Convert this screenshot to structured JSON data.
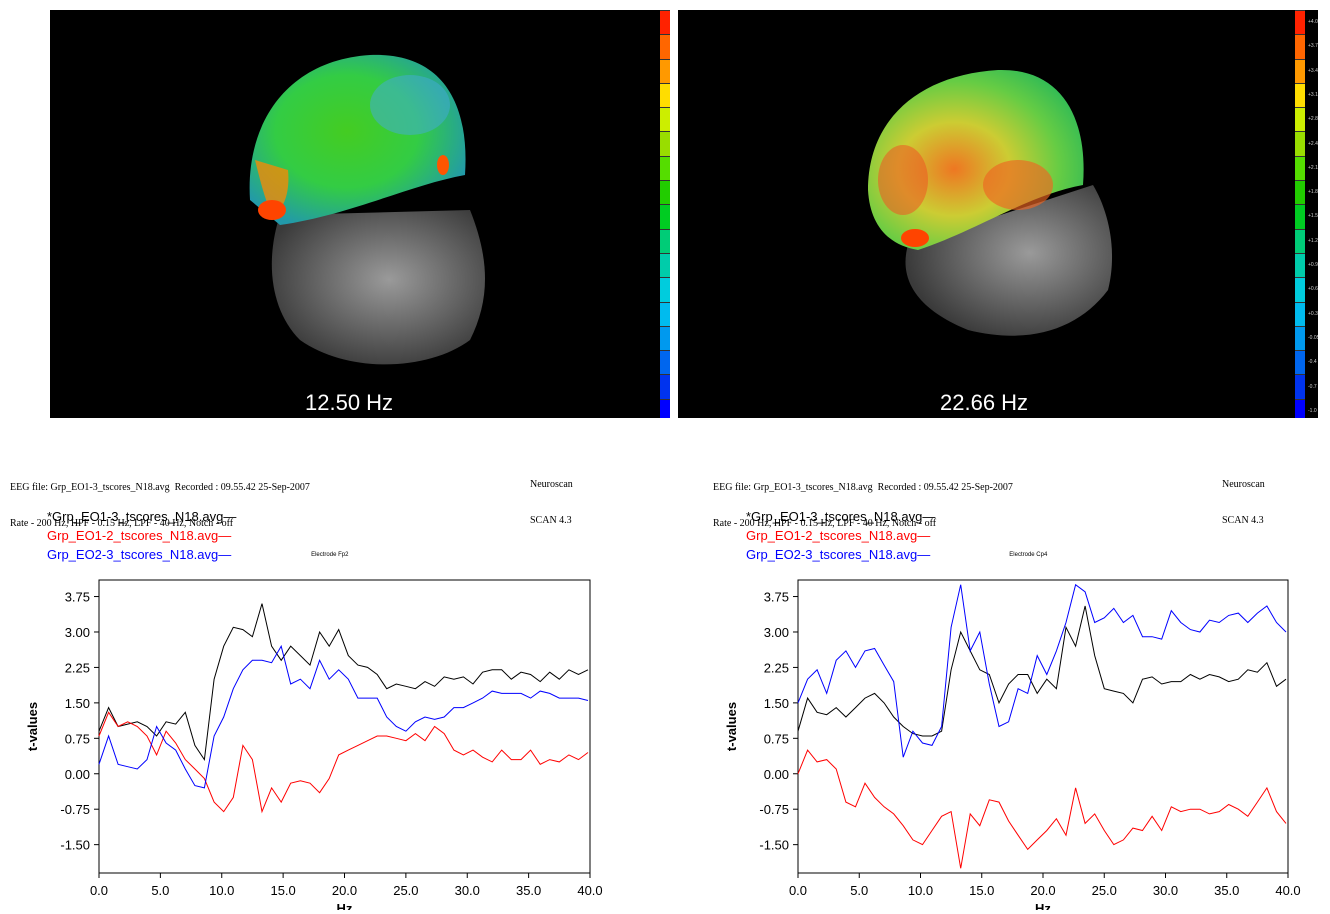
{
  "maps": [
    {
      "frequency_label": "12.50 Hz"
    },
    {
      "frequency_label": "22.66 Hz"
    }
  ],
  "colorbar": {
    "ticks": [
      "+4.0",
      "+3.7",
      "+3.4",
      "+3.1",
      "+2.8",
      "+2.4",
      "+2.1",
      "+1.8",
      "+1.5",
      "+1.2",
      "+0.9",
      "+0.6",
      "+0.3",
      "-0.05",
      "-0.4",
      "-0.7",
      "-1.0"
    ],
    "colors": [
      "#ff2200",
      "#ff6600",
      "#ff9900",
      "#ffdd00",
      "#ccee00",
      "#99dd00",
      "#55dd00",
      "#22cc00",
      "#00cc22",
      "#00cc77",
      "#00ccaa",
      "#00ccdd",
      "#00bbee",
      "#0099ee",
      "#0066ee",
      "#0033ee",
      "#0000ff"
    ]
  },
  "header_left": {
    "line1": "EEG file: Grp_EO1-3_tscores_N18.avg  Recorded : 09.55.42 25-Sep-2007",
    "line2": "Rate - 200 Hz, HPF - 0.15 Hz, LPF - 40 Hz, Notch - off",
    "software": "Neuroscan",
    "version": "SCAN 4.3"
  },
  "header_right": {
    "line1": "EEG file: Grp_EO1-3_tscores_N18.avg  Recorded : 09.55.42 25-Sep-2007",
    "line2": "Rate - 200 Hz, HPF - 0.15 Hz, LPF - 40 Hz, Notch - off",
    "software": "Neuroscan",
    "version": "SCAN 4.3"
  },
  "chart_data": [
    {
      "type": "line",
      "title": "Electrode Fp2",
      "xlabel": "Hz",
      "ylabel": "t-values",
      "xlim": [
        0,
        40
      ],
      "ylim": [
        -2.1,
        4.1
      ],
      "xticks": [
        "0.0",
        "5.0",
        "10.0",
        "15.0",
        "20.0",
        "25.0",
        "30.0",
        "35.0",
        "40.0"
      ],
      "yticks": [
        "3.75",
        "3.00",
        "2.25",
        "1.50",
        "0.75",
        "0.00",
        "-0.75",
        "-1.50"
      ],
      "x": [
        0.0,
        0.78,
        1.56,
        2.34,
        3.12,
        3.91,
        4.69,
        5.47,
        6.25,
        7.03,
        7.81,
        8.59,
        9.38,
        10.16,
        10.94,
        11.72,
        12.5,
        13.28,
        14.06,
        14.84,
        15.62,
        16.41,
        17.19,
        17.97,
        18.75,
        19.53,
        20.31,
        21.09,
        21.88,
        22.66,
        23.44,
        24.22,
        25.0,
        25.78,
        26.56,
        27.34,
        28.12,
        28.91,
        29.69,
        30.47,
        31.25,
        32.03,
        32.81,
        33.59,
        34.38,
        35.16,
        35.94,
        36.72,
        37.5,
        38.28,
        39.06,
        39.84
      ],
      "series": [
        {
          "name": "*Grp_EO1-3_tscores_N18.avg",
          "color": "#000000",
          "values": [
            0.9,
            1.4,
            1.0,
            1.05,
            1.1,
            1.0,
            0.8,
            1.1,
            1.05,
            1.3,
            0.6,
            0.3,
            2.0,
            2.7,
            3.1,
            3.05,
            2.9,
            3.6,
            2.7,
            2.4,
            2.7,
            2.5,
            2.3,
            3.0,
            2.7,
            3.05,
            2.5,
            2.3,
            2.25,
            2.1,
            1.8,
            1.9,
            1.85,
            1.8,
            1.95,
            1.85,
            2.05,
            2.0,
            2.05,
            1.9,
            2.15,
            2.2,
            2.2,
            2.0,
            2.15,
            2.1,
            1.95,
            2.15,
            2.0,
            2.2,
            2.1,
            2.2
          ]
        },
        {
          "name": "Grp_EO1-2_tscores_N18.avg",
          "color": "#ff0000",
          "values": [
            0.8,
            1.3,
            1.0,
            1.1,
            1.0,
            0.8,
            0.4,
            0.9,
            0.65,
            0.3,
            0.1,
            -0.1,
            -0.6,
            -0.8,
            -0.5,
            0.6,
            0.3,
            -0.8,
            -0.3,
            -0.6,
            -0.2,
            -0.15,
            -0.2,
            -0.4,
            -0.1,
            0.4,
            0.5,
            0.6,
            0.7,
            0.8,
            0.8,
            0.75,
            0.7,
            0.85,
            0.7,
            1.0,
            0.85,
            0.5,
            0.4,
            0.5,
            0.35,
            0.25,
            0.5,
            0.3,
            0.3,
            0.5,
            0.2,
            0.3,
            0.25,
            0.4,
            0.3,
            0.45
          ]
        },
        {
          "name": "Grp_EO2-3_tscores_N18.avg",
          "color": "#0000ff",
          "values": [
            0.2,
            0.8,
            0.2,
            0.15,
            0.1,
            0.3,
            1.0,
            0.65,
            0.5,
            0.1,
            -0.25,
            -0.3,
            0.8,
            1.2,
            1.8,
            2.2,
            2.4,
            2.4,
            2.35,
            2.7,
            1.9,
            2.0,
            1.8,
            2.4,
            2.0,
            2.2,
            2.0,
            1.6,
            1.6,
            1.6,
            1.2,
            1.0,
            0.9,
            1.1,
            1.2,
            1.15,
            1.2,
            1.4,
            1.4,
            1.5,
            1.6,
            1.75,
            1.7,
            1.7,
            1.7,
            1.6,
            1.75,
            1.7,
            1.6,
            1.6,
            1.6,
            1.55
          ]
        }
      ]
    },
    {
      "type": "line",
      "title": "Electrode Cp4",
      "xlabel": "Hz",
      "ylabel": "t-values",
      "xlim": [
        0,
        40
      ],
      "ylim": [
        -2.1,
        4.1
      ],
      "xticks": [
        "0.0",
        "5.0",
        "10.0",
        "15.0",
        "20.0",
        "25.0",
        "30.0",
        "35.0",
        "40.0"
      ],
      "yticks": [
        "3.75",
        "3.00",
        "2.25",
        "1.50",
        "0.75",
        "0.00",
        "-0.75",
        "-1.50"
      ],
      "x": [
        0.0,
        0.78,
        1.56,
        2.34,
        3.12,
        3.91,
        4.69,
        5.47,
        6.25,
        7.03,
        7.81,
        8.59,
        9.38,
        10.16,
        10.94,
        11.72,
        12.5,
        13.28,
        14.06,
        14.84,
        15.62,
        16.41,
        17.19,
        17.97,
        18.75,
        19.53,
        20.31,
        21.09,
        21.88,
        22.66,
        23.44,
        24.22,
        25.0,
        25.78,
        26.56,
        27.34,
        28.12,
        28.91,
        29.69,
        30.47,
        31.25,
        32.03,
        32.81,
        33.59,
        34.38,
        35.16,
        35.94,
        36.72,
        37.5,
        38.28,
        39.06,
        39.84
      ],
      "series": [
        {
          "name": "*Grp_EO1-3_tscores_N18.avg",
          "color": "#000000",
          "values": [
            0.9,
            1.6,
            1.3,
            1.25,
            1.4,
            1.2,
            1.4,
            1.6,
            1.7,
            1.5,
            1.2,
            1.0,
            0.85,
            0.8,
            0.8,
            0.9,
            2.2,
            3.0,
            2.6,
            2.2,
            2.1,
            1.5,
            1.9,
            2.1,
            2.1,
            1.7,
            2.0,
            1.8,
            3.1,
            2.7,
            3.55,
            2.5,
            1.8,
            1.75,
            1.7,
            1.5,
            2.0,
            2.05,
            1.9,
            1.95,
            1.95,
            2.1,
            2.0,
            2.1,
            2.05,
            1.95,
            2.0,
            2.2,
            2.15,
            2.35,
            1.85,
            2.0
          ]
        },
        {
          "name": "Grp_EO1-2_tscores_N18.avg",
          "color": "#ff0000",
          "values": [
            0.0,
            0.5,
            0.25,
            0.3,
            0.1,
            -0.6,
            -0.7,
            -0.2,
            -0.5,
            -0.7,
            -0.85,
            -1.1,
            -1.4,
            -1.5,
            -1.2,
            -0.9,
            -0.8,
            -2.0,
            -0.85,
            -1.1,
            -0.55,
            -0.6,
            -1.0,
            -1.3,
            -1.6,
            -1.4,
            -1.2,
            -0.95,
            -1.3,
            -0.3,
            -1.05,
            -0.85,
            -1.2,
            -1.5,
            -1.4,
            -1.15,
            -1.2,
            -0.9,
            -1.2,
            -0.7,
            -0.8,
            -0.75,
            -0.75,
            -0.85,
            -0.8,
            -0.65,
            -0.75,
            -0.9,
            -0.6,
            -0.3,
            -0.8,
            -1.05
          ]
        },
        {
          "name": "Grp_EO2-3_tscores_N18.avg",
          "color": "#0000ff",
          "values": [
            1.5,
            2.0,
            2.2,
            1.7,
            2.4,
            2.6,
            2.25,
            2.6,
            2.65,
            2.3,
            1.95,
            0.35,
            0.9,
            0.65,
            0.6,
            1.0,
            3.1,
            4.0,
            2.6,
            3.0,
            1.9,
            1.0,
            1.1,
            1.8,
            1.7,
            2.5,
            2.1,
            2.6,
            3.2,
            4.0,
            3.85,
            3.2,
            3.3,
            3.5,
            3.2,
            3.35,
            2.9,
            2.9,
            2.85,
            3.45,
            3.2,
            3.05,
            3.0,
            3.25,
            3.2,
            3.35,
            3.4,
            3.2,
            3.4,
            3.55,
            3.2,
            3.0
          ]
        }
      ]
    }
  ]
}
